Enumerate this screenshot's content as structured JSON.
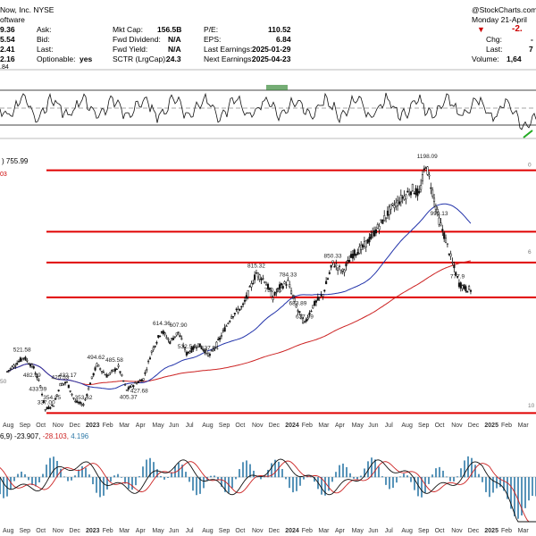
{
  "header": {
    "title": "Now, Inc.  NYSE",
    "subtitle": "oftware",
    "brand": "@StockCharts.com",
    "date": "Monday 21-April",
    "change_value": "-2.",
    "left_values": [
      "9.36",
      "5.54",
      "2.41",
      "2.16"
    ],
    "left_value_partial": ".84",
    "fields": [
      {
        "label": "Ask:",
        "value": ""
      },
      {
        "label": "Bid:",
        "value": ""
      },
      {
        "label": "Last:",
        "value": ""
      },
      {
        "label": "Optionable:",
        "value": "yes"
      },
      {
        "label": "Mkt Cap:",
        "value": "156.5B"
      },
      {
        "label": "Fwd Dividend:",
        "value": "N/A"
      },
      {
        "label": "Fwd Yield:",
        "value": "N/A"
      },
      {
        "label": "SCTR (LrgCap):",
        "value": "24.3"
      },
      {
        "label": "P/E:",
        "value": "110.52"
      },
      {
        "label": "EPS:",
        "value": "6.84"
      },
      {
        "label": "Last Earnings:",
        "value": "2025-01-29"
      },
      {
        "label": "Next Earnings:",
        "value": "2025-04-23"
      }
    ],
    "right_labels": [
      {
        "label": "Chg:",
        "value": "-"
      },
      {
        "label": "Last:",
        "value": "7"
      },
      {
        "label": "Volume:",
        "value": "1,64"
      }
    ]
  },
  "colors": {
    "price": "#111111",
    "ma_fast": "#2233aa",
    "ma_slow": "#cc2222",
    "levels": "#e00000",
    "macd_hist": "#2f7aa8",
    "rsi_fill": "#3a8a3a",
    "down_arrow": "#cc0000",
    "green_arrow": "#22aa22"
  },
  "main_legend": {
    "value": "755.99",
    "partial_red": "03"
  },
  "macd_legend": {
    "prefix": "6,9)",
    "v1": "-23.907,",
    "v2": "-28.103,",
    "v3": "4.196"
  },
  "chart_data": {
    "type": "candlestick",
    "title": "",
    "x_months": [
      "Aug",
      "Sep",
      "Oct",
      "Nov",
      "Dec",
      "2023",
      "Feb",
      "Mar",
      "Apr",
      "May",
      "Jun",
      "Jul",
      "Aug",
      "Sep",
      "Oct",
      "Nov",
      "Dec",
      "2024",
      "Feb",
      "Mar",
      "Apr",
      "May",
      "Jun",
      "Jul",
      "Aug",
      "Sep",
      "Oct",
      "Nov",
      "Dec",
      "2025",
      "Feb",
      "Mar",
      "Apr"
    ],
    "y_range": [
      320,
      1230
    ],
    "price_path": [
      [
        0,
        470
      ],
      [
        1,
        521
      ],
      [
        1.6,
        483
      ],
      [
        2,
        420
      ],
      [
        2.3,
        337
      ],
      [
        2.8,
        354
      ],
      [
        3.2,
        425
      ],
      [
        3.6,
        432
      ],
      [
        4.1,
        365
      ],
      [
        4.6,
        354
      ],
      [
        5,
        430
      ],
      [
        5.4,
        494
      ],
      [
        6,
        455
      ],
      [
        6.7,
        486
      ],
      [
        7.2,
        405
      ],
      [
        7.7,
        428
      ],
      [
        8.2,
        445
      ],
      [
        8.7,
        540
      ],
      [
        9.3,
        614
      ],
      [
        9.8,
        575
      ],
      [
        10.3,
        608
      ],
      [
        10.8,
        533
      ],
      [
        11.5,
        565
      ],
      [
        12.2,
        527
      ],
      [
        12.8,
        585
      ],
      [
        13.5,
        665
      ],
      [
        14.2,
        700
      ],
      [
        15,
        815
      ],
      [
        15.5,
        790
      ],
      [
        16,
        730
      ],
      [
        16.4,
        765
      ],
      [
        16.9,
        784
      ],
      [
        17.5,
        684
      ],
      [
        17.9,
        638
      ],
      [
        18.4,
        700
      ],
      [
        19,
        740
      ],
      [
        19.6,
        850
      ],
      [
        20.2,
        820
      ],
      [
        20.8,
        880
      ],
      [
        21.4,
        905
      ],
      [
        21.9,
        940
      ],
      [
        22.5,
        990
      ],
      [
        23.1,
        1040
      ],
      [
        23.8,
        1080
      ],
      [
        24.4,
        1110
      ],
      [
        24.8,
        1090
      ],
      [
        25.2,
        1198
      ],
      [
        25.6,
        1100
      ],
      [
        26,
        999
      ],
      [
        26.4,
        930
      ],
      [
        26.8,
        850
      ],
      [
        27.2,
        778
      ],
      [
        27.6,
        760
      ],
      [
        28,
        755
      ]
    ],
    "price_labels": [
      {
        "x": 0.9,
        "value": "521.58"
      },
      {
        "x": 1.5,
        "value": "482.69"
      },
      {
        "x": 1.85,
        "value": "433.39"
      },
      {
        "x": 2.35,
        "value": "337.00"
      },
      {
        "x": 2.7,
        "value": "354.25"
      },
      {
        "x": 3.2,
        "value": "425.53"
      },
      {
        "x": 3.65,
        "value": "432.17"
      },
      {
        "x": 4.6,
        "value": "353.62"
      },
      {
        "x": 5.35,
        "value": "494.62"
      },
      {
        "x": 6.45,
        "value": "485.58"
      },
      {
        "x": 7.3,
        "value": "405.37"
      },
      {
        "x": 7.95,
        "value": "427.68"
      },
      {
        "x": 9.3,
        "value": "614.36"
      },
      {
        "x": 10.3,
        "value": "607.90"
      },
      {
        "x": 10.8,
        "value": "532.54"
      },
      {
        "x": 12.2,
        "value": "527.24"
      },
      {
        "x": 15,
        "value": "815.32"
      },
      {
        "x": 16,
        "value": "730.15"
      },
      {
        "x": 16.9,
        "value": "784.33"
      },
      {
        "x": 17.5,
        "value": "683.89"
      },
      {
        "x": 17.9,
        "value": "637.99"
      },
      {
        "x": 19.6,
        "value": "850.33"
      },
      {
        "x": 25.2,
        "value": "1198.09"
      },
      {
        "x": 26,
        "value": "999.13"
      },
      {
        "x": 27.2,
        "value": "777.9"
      }
    ],
    "levels": [
      1175,
      960,
      852,
      730,
      325
    ],
    "axis_partial_labels": [
      "0",
      "6",
      "10"
    ],
    "left_partial_labels": [
      "50"
    ],
    "macd": {
      "y_range": [
        -60,
        60
      ]
    }
  }
}
